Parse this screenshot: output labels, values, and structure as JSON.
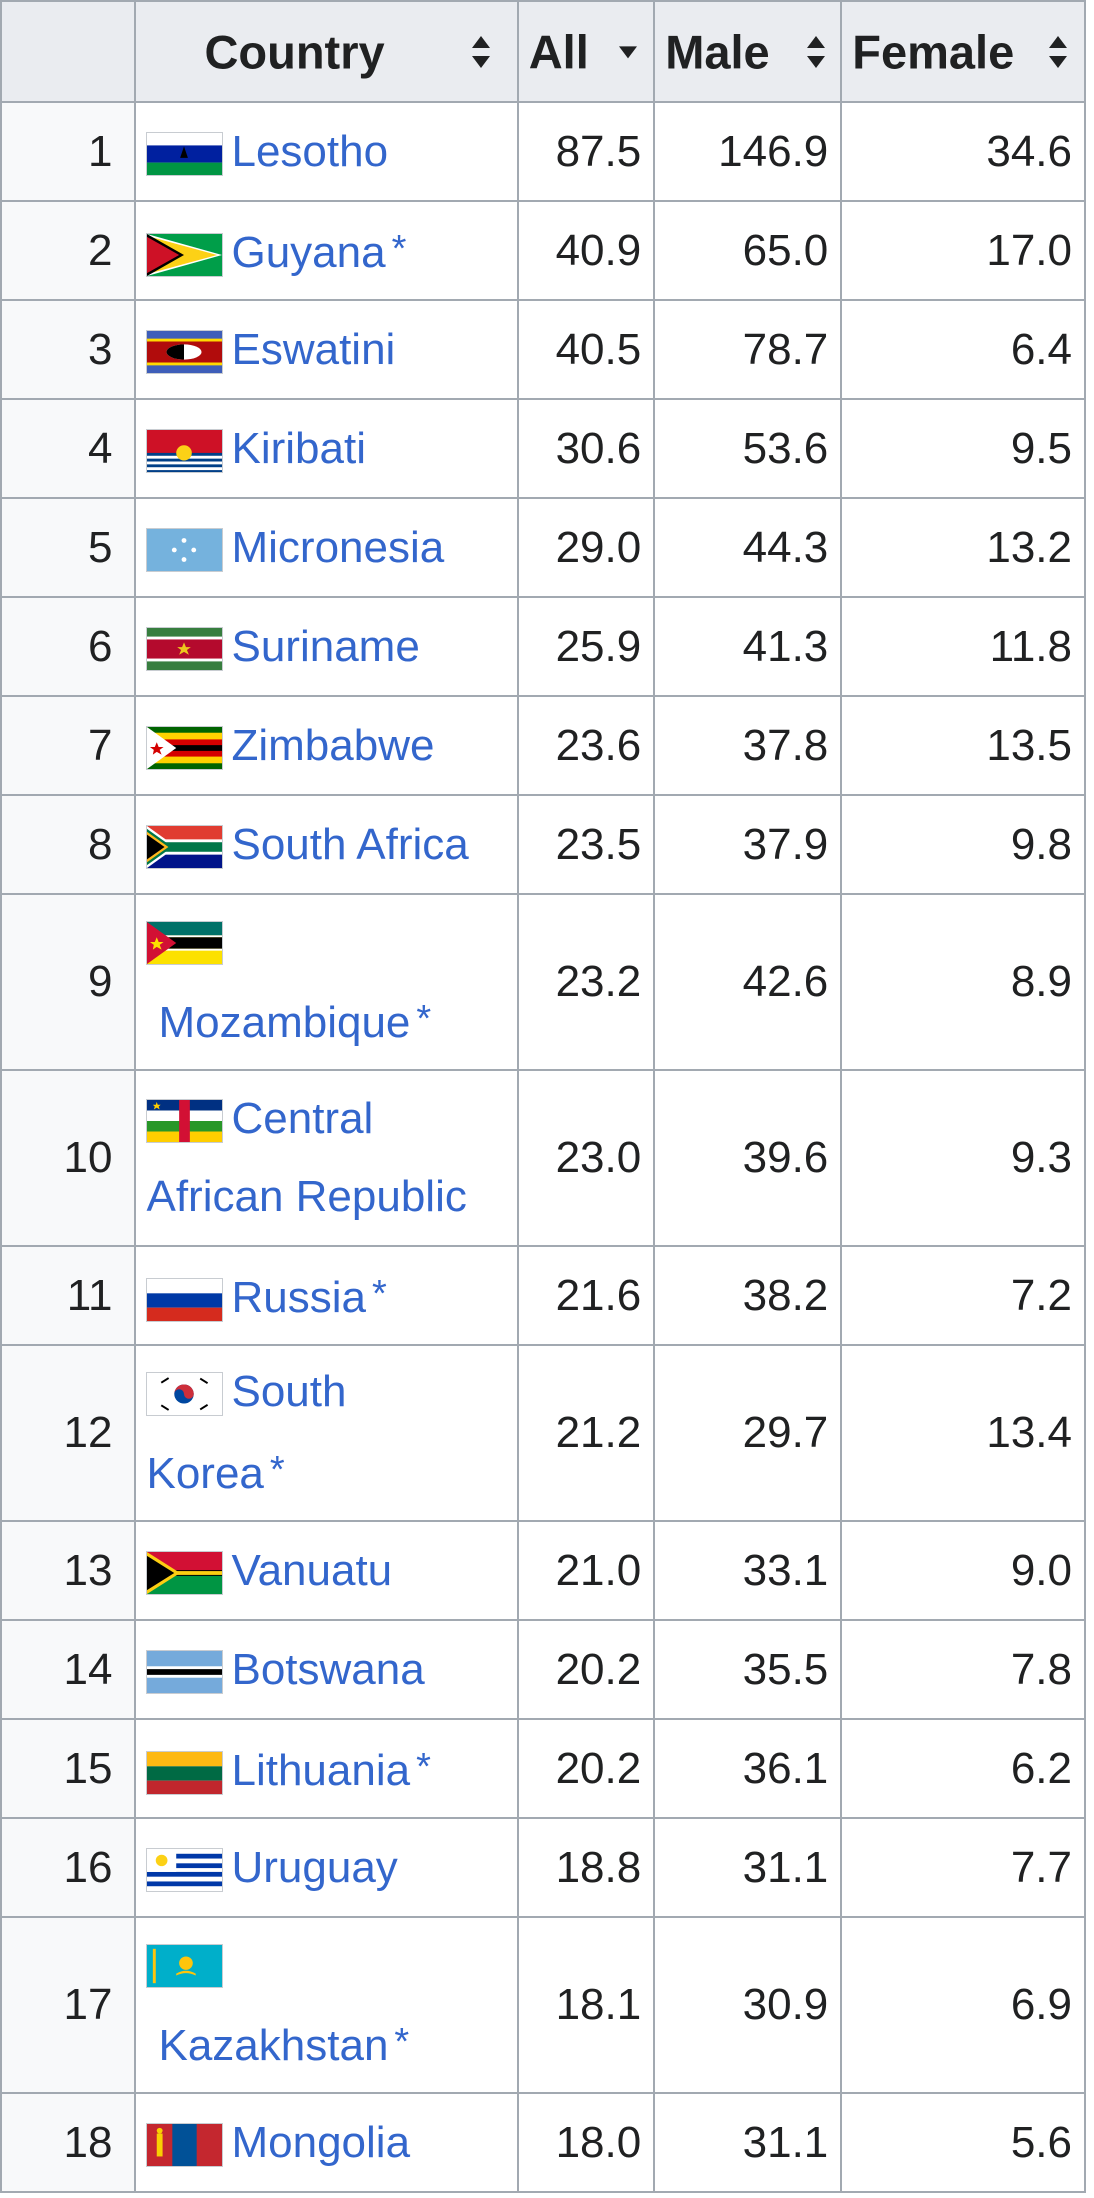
{
  "table": {
    "headers": {
      "rank": "",
      "country": "Country",
      "all": "All",
      "male": "Male",
      "female": "Female"
    },
    "rows": [
      {
        "rank": "1",
        "country": "Lesotho",
        "mark": "",
        "all": "87.5",
        "male": "146.9",
        "female": "34.6",
        "flag": "lesotho-flag-icon"
      },
      {
        "rank": "2",
        "country": "Guyana",
        "mark": "*",
        "all": "40.9",
        "male": "65.0",
        "female": "17.0",
        "flag": "guyana-flag-icon"
      },
      {
        "rank": "3",
        "country": "Eswatini",
        "mark": "",
        "all": "40.5",
        "male": "78.7",
        "female": "6.4",
        "flag": "eswatini-flag-icon"
      },
      {
        "rank": "4",
        "country": "Kiribati",
        "mark": "",
        "all": "30.6",
        "male": "53.6",
        "female": "9.5",
        "flag": "kiribati-flag-icon"
      },
      {
        "rank": "5",
        "country": "Micronesia",
        "mark": "",
        "all": "29.0",
        "male": "44.3",
        "female": "13.2",
        "flag": "micronesia-flag-icon"
      },
      {
        "rank": "6",
        "country": "Suriname",
        "mark": "",
        "all": "25.9",
        "male": "41.3",
        "female": "11.8",
        "flag": "suriname-flag-icon"
      },
      {
        "rank": "7",
        "country": "Zimbabwe",
        "mark": "",
        "all": "23.6",
        "male": "37.8",
        "female": "13.5",
        "flag": "zimbabwe-flag-icon"
      },
      {
        "rank": "8",
        "country": "South Africa",
        "mark": "",
        "all": "23.5",
        "male": "37.9",
        "female": "9.8",
        "flag": "south-africa-flag-icon"
      },
      {
        "rank": "9",
        "country": "Mozambique",
        "mark": "*",
        "all": "23.2",
        "male": "42.6",
        "female": "8.9",
        "flag": "mozambique-flag-icon"
      },
      {
        "rank": "10",
        "country_line1": "Central",
        "country_line2": "African Republic",
        "mark": "",
        "all": "23.0",
        "male": "39.6",
        "female": "9.3",
        "flag": "central-african-republic-flag-icon"
      },
      {
        "rank": "11",
        "country": "Russia",
        "mark": "*",
        "all": "21.6",
        "male": "38.2",
        "female": "7.2",
        "flag": "russia-flag-icon"
      },
      {
        "rank": "12",
        "country_line1": "South",
        "country_line2": "Korea",
        "mark": "*",
        "all": "21.2",
        "male": "29.7",
        "female": "13.4",
        "flag": "south-korea-flag-icon"
      },
      {
        "rank": "13",
        "country": "Vanuatu",
        "mark": "",
        "all": "21.0",
        "male": "33.1",
        "female": "9.0",
        "flag": "vanuatu-flag-icon"
      },
      {
        "rank": "14",
        "country": "Botswana",
        "mark": "",
        "all": "20.2",
        "male": "35.5",
        "female": "7.8",
        "flag": "botswana-flag-icon"
      },
      {
        "rank": "15",
        "country": "Lithuania",
        "mark": "*",
        "all": "20.2",
        "male": "36.1",
        "female": "6.2",
        "flag": "lithuania-flag-icon"
      },
      {
        "rank": "16",
        "country": "Uruguay",
        "mark": "",
        "all": "18.8",
        "male": "31.1",
        "female": "7.7",
        "flag": "uruguay-flag-icon"
      },
      {
        "rank": "17",
        "country": "Kazakhstan",
        "mark": "*",
        "all": "18.1",
        "male": "30.9",
        "female": "6.9",
        "flag": "kazakhstan-flag-icon"
      },
      {
        "rank": "18",
        "country": "Mongolia",
        "mark": "",
        "all": "18.0",
        "male": "31.1",
        "female": "5.6",
        "flag": "mongolia-flag-icon"
      }
    ]
  },
  "colors": {
    "link": "#3366cc",
    "header_bg": "#eaecf0",
    "rank_bg": "#f8f9fa",
    "border": "#a2a9b1",
    "text": "#202122"
  }
}
